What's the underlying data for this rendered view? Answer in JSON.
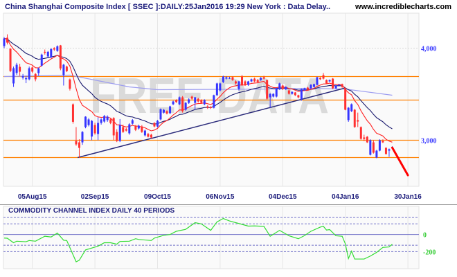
{
  "header": {
    "title": "China Shanghai Composite Index [ SSEC ]:DAILY:25Jan2016 19:29 New York : Data Delay..",
    "site": "www.incrediblecharts.com"
  },
  "watermark": "FREE DATA",
  "chart_data": [
    {
      "type": "candlestick",
      "title": "China Shanghai Composite Index [ SSEC ]:DAILY:25Jan2016 19:29 New York : Data Delay..",
      "ylim": [
        2500,
        4380
      ],
      "y_ticks": [
        {
          "value": 4000,
          "label": "4,000"
        },
        {
          "value": 3000,
          "label": "3,000"
        }
      ],
      "x_ticks": [
        {
          "index": 9,
          "label": "05Aug15"
        },
        {
          "index": 29,
          "label": "02Sep15"
        },
        {
          "index": 49,
          "label": "09Oct15"
        },
        {
          "index": 69,
          "label": "06Nov15"
        },
        {
          "index": 89,
          "label": "04Dec15"
        },
        {
          "index": 109,
          "label": "04Jan16"
        },
        {
          "index": 129,
          "label": "30Jan16"
        }
      ],
      "grid": true,
      "colors": {
        "up": "#3535ff",
        "down": "#ff3030",
        "ma_fast": "#ff2020",
        "ma_slow": "#1a1a6e",
        "ma_long": "#9c9cf0",
        "levels": "#ff8000",
        "trendline": "#2a2a7a",
        "arrow": "#ff0000"
      },
      "candles_ohlc": [
        [
          4023,
          4120,
          4000,
          4105
        ],
        [
          4113,
          4150,
          4040,
          4060
        ],
        [
          3993,
          4000,
          3740,
          3752
        ],
        [
          3617,
          3800,
          3579,
          3782
        ],
        [
          3730,
          3840,
          3710,
          3820
        ],
        [
          3797,
          3830,
          3700,
          3744
        ],
        [
          3680,
          3720,
          3660,
          3695
        ],
        [
          3662,
          3700,
          3620,
          3675
        ],
        [
          3662,
          3800,
          3650,
          3782
        ],
        [
          3790,
          3800,
          3730,
          3745
        ],
        [
          3720,
          3730,
          3640,
          3662
        ],
        [
          3729,
          3790,
          3700,
          3780
        ],
        [
          3810,
          3940,
          3800,
          3930
        ],
        [
          3960,
          3985,
          3930,
          3950
        ],
        [
          3910,
          3970,
          3900,
          3960
        ],
        [
          3900,
          4000,
          3890,
          3990
        ],
        [
          4000,
          4010,
          3970,
          3985
        ],
        [
          3970,
          4030,
          3960,
          4020
        ],
        [
          4030,
          4035,
          3760,
          3780
        ],
        [
          3707,
          3830,
          3594,
          3820
        ],
        [
          3800,
          3810,
          3740,
          3750
        ],
        [
          3660,
          3670,
          3540,
          3560
        ],
        [
          3390,
          3400,
          3180,
          3200
        ],
        [
          2992,
          3143,
          2940,
          2955
        ],
        [
          2977,
          3010,
          2812,
          2917
        ],
        [
          2977,
          3100,
          2950,
          3090
        ],
        [
          3143,
          3260,
          3130,
          3256
        ],
        [
          3165,
          3240,
          3150,
          3226
        ],
        [
          3040,
          3220,
          3000,
          3210
        ],
        [
          3165,
          3190,
          3060,
          3075
        ],
        [
          3068,
          3250,
          3000,
          3188
        ],
        [
          3188,
          3240,
          3170,
          3226
        ],
        [
          3203,
          3275,
          3190,
          3263
        ],
        [
          3218,
          3270,
          3200,
          3256
        ],
        [
          3226,
          3240,
          3175,
          3188
        ],
        [
          3241,
          3250,
          3000,
          3053
        ],
        [
          3090,
          3120,
          2980,
          2992
        ],
        [
          2992,
          3230,
          2980,
          3165
        ],
        [
          3143,
          3170,
          3080,
          3090
        ],
        [
          3120,
          3135,
          3095,
          3105
        ],
        [
          3075,
          3185,
          3060,
          3173
        ],
        [
          3180,
          3230,
          3170,
          3218
        ],
        [
          3150,
          3165,
          3100,
          3113
        ],
        [
          3128,
          3170,
          3115,
          3158
        ],
        [
          3150,
          3165,
          3080,
          3090
        ],
        [
          3053,
          3115,
          3040,
          3105
        ],
        [
          3068,
          3080,
          3030,
          3038
        ],
        [
          3060,
          3070,
          3020,
          3030
        ],
        [
          3188,
          3195,
          3140,
          3150
        ],
        [
          3150,
          3220,
          3140,
          3211
        ],
        [
          3226,
          3345,
          3215,
          3338
        ],
        [
          3300,
          3340,
          3290,
          3330
        ],
        [
          3316,
          3325,
          3280,
          3290
        ],
        [
          3293,
          3375,
          3285,
          3368
        ],
        [
          3391,
          3430,
          3380,
          3421
        ],
        [
          3436,
          3445,
          3405,
          3414
        ],
        [
          3391,
          3475,
          3380,
          3466
        ],
        [
          3466,
          3480,
          3300,
          3316
        ],
        [
          3331,
          3415,
          3320,
          3406
        ],
        [
          3406,
          3455,
          3395,
          3444
        ],
        [
          3474,
          3485,
          3440,
          3451
        ],
        [
          3406,
          3470,
          3330,
          3466
        ],
        [
          3451,
          3460,
          3410,
          3421
        ],
        [
          3436,
          3445,
          3395,
          3406
        ],
        [
          3391,
          3445,
          3380,
          3436
        ],
        [
          3368,
          3380,
          3340,
          3353
        ],
        [
          3360,
          3370,
          3340,
          3350
        ],
        [
          3353,
          3495,
          3345,
          3489
        ],
        [
          3489,
          3625,
          3480,
          3617
        ],
        [
          3541,
          3625,
          3530,
          3617
        ],
        [
          3632,
          3700,
          3620,
          3692
        ],
        [
          3669,
          3695,
          3660,
          3684
        ],
        [
          3672,
          3690,
          3665,
          3677
        ],
        [
          3684,
          3695,
          3645,
          3654
        ],
        [
          3639,
          3650,
          3605,
          3617
        ],
        [
          3556,
          3645,
          3540,
          3639
        ],
        [
          3692,
          3710,
          3590,
          3602
        ],
        [
          3639,
          3650,
          3590,
          3602
        ],
        [
          3602,
          3645,
          3590,
          3639
        ],
        [
          3639,
          3670,
          3630,
          3662
        ],
        [
          3669,
          3680,
          3630,
          3639
        ],
        [
          3654,
          3665,
          3620,
          3632
        ],
        [
          3654,
          3685,
          3645,
          3677
        ],
        [
          3684,
          3700,
          3660,
          3669
        ],
        [
          3654,
          3660,
          3440,
          3451
        ],
        [
          3466,
          3510,
          3353,
          3504
        ],
        [
          3474,
          3510,
          3465,
          3504
        ],
        [
          3474,
          3570,
          3465,
          3564
        ],
        [
          3556,
          3625,
          3545,
          3617
        ],
        [
          3594,
          3605,
          3545,
          3556
        ],
        [
          3556,
          3585,
          3545,
          3579
        ],
        [
          3541,
          3550,
          3495,
          3504
        ],
        [
          3504,
          3530,
          3495,
          3526
        ],
        [
          3519,
          3525,
          3480,
          3489
        ],
        [
          3489,
          3495,
          3455,
          3466
        ],
        [
          3444,
          3560,
          3430,
          3556
        ],
        [
          3541,
          3570,
          3535,
          3564
        ],
        [
          3571,
          3580,
          3540,
          3549
        ],
        [
          3564,
          3610,
          3555,
          3602
        ],
        [
          3579,
          3615,
          3570,
          3609
        ],
        [
          3602,
          3690,
          3595,
          3684
        ],
        [
          3677,
          3685,
          3655,
          3662
        ],
        [
          3707,
          3730,
          3660,
          3669
        ],
        [
          3654,
          3660,
          3610,
          3617
        ],
        [
          3639,
          3660,
          3630,
          3654
        ],
        [
          3669,
          3675,
          3555,
          3564
        ],
        [
          3564,
          3600,
          3555,
          3594
        ],
        [
          3594,
          3610,
          3585,
          3602
        ],
        [
          3609,
          3615,
          3570,
          3579
        ],
        [
          3564,
          3570,
          3325,
          3331
        ],
        [
          3218,
          3360,
          3200,
          3353
        ],
        [
          3316,
          3400,
          3305,
          3391
        ],
        [
          3331,
          3340,
          3135,
          3143
        ],
        [
          3218,
          3300,
          3143,
          3203
        ],
        [
          3143,
          3150,
          3005,
          3015
        ],
        [
          3030,
          3060,
          2990,
          3015
        ],
        [
          3038,
          3045,
          2970,
          2977
        ],
        [
          2842,
          3010,
          2835,
          3000
        ],
        [
          2977,
          3000,
          2855,
          2865
        ],
        [
          2812,
          2895,
          2805,
          2887
        ],
        [
          2887,
          3010,
          2880,
          3000
        ],
        [
          2992,
          3010,
          2970,
          2977
        ],
        [
          2917,
          2925,
          2845,
          2850
        ],
        [
          2887,
          2910,
          2820,
          2902
        ],
        [
          2917,
          2935,
          2905,
          2925
        ]
      ],
      "long_ma": [
        [
          0,
          3692
        ],
        [
          21,
          3707
        ],
        [
          40,
          3579
        ],
        [
          49,
          3549
        ],
        [
          88,
          3556
        ],
        [
          96,
          3564
        ],
        [
          109,
          3556
        ],
        [
          124,
          3489
        ]
      ],
      "levels": [
        3692,
        3436,
        3000,
        2812
      ],
      "trendline": [
        [
          23.5,
          2812
        ],
        [
          108.6,
          3564
        ]
      ],
      "arrow": [
        [
          124,
          2920
        ],
        [
          129,
          2620
        ]
      ]
    },
    {
      "type": "line",
      "title": "COMMODITY CHANNEL INDEX DAILY 40 PERIODS",
      "ylim": [
        -400,
        330
      ],
      "y_ticks": [
        {
          "value": 0,
          "label": "0"
        },
        {
          "value": -200,
          "label": "-200"
        }
      ],
      "reference_lines": [
        200,
        125,
        0,
        -125,
        -200
      ],
      "color": "#33dd33",
      "points": [
        [
          0,
          -41
        ],
        [
          1,
          -43
        ],
        [
          3,
          -96
        ],
        [
          4,
          -78
        ],
        [
          7,
          -84
        ],
        [
          8,
          -70
        ],
        [
          10,
          -78
        ],
        [
          13,
          -20
        ],
        [
          15,
          -29
        ],
        [
          17,
          17
        ],
        [
          19,
          -67
        ],
        [
          20,
          -70
        ],
        [
          23,
          -319
        ],
        [
          24,
          -301
        ],
        [
          26,
          -180
        ],
        [
          30,
          -136
        ],
        [
          32,
          -96
        ],
        [
          34,
          -96
        ],
        [
          36,
          -113
        ],
        [
          37,
          -81
        ],
        [
          40,
          -78
        ],
        [
          42,
          -49
        ],
        [
          43,
          -58
        ],
        [
          47,
          -70
        ],
        [
          48,
          -41
        ],
        [
          51,
          -9
        ],
        [
          53,
          0
        ],
        [
          55,
          38
        ],
        [
          58,
          61
        ],
        [
          61,
          139
        ],
        [
          63,
          125
        ],
        [
          66,
          49
        ],
        [
          68,
          148
        ],
        [
          70,
          188
        ],
        [
          72,
          159
        ],
        [
          76,
          119
        ],
        [
          78,
          99
        ],
        [
          80,
          101
        ],
        [
          83,
          96
        ],
        [
          85,
          -20
        ],
        [
          88,
          49
        ],
        [
          91,
          -14
        ],
        [
          94,
          -49
        ],
        [
          96,
          -12
        ],
        [
          98,
          38
        ],
        [
          101,
          87
        ],
        [
          102,
          96
        ],
        [
          103,
          52
        ],
        [
          104,
          58
        ],
        [
          106,
          -14
        ],
        [
          108,
          -20
        ],
        [
          109,
          -107
        ],
        [
          110,
          -281
        ],
        [
          111,
          -194
        ],
        [
          112,
          -287
        ],
        [
          115,
          -287
        ],
        [
          117,
          -252
        ],
        [
          119,
          -209
        ],
        [
          121,
          -151
        ],
        [
          123,
          -145
        ],
        [
          124,
          -113
        ]
      ]
    }
  ]
}
